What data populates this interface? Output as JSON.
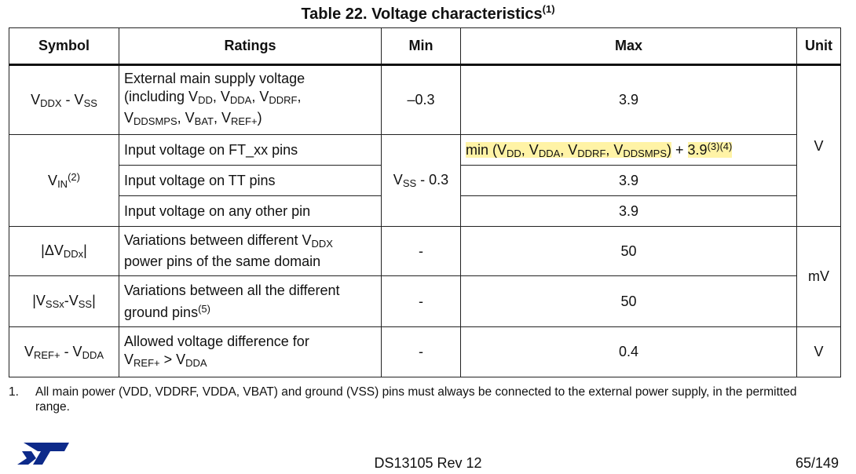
{
  "title": {
    "text": "Table 22. Voltage characteristics",
    "note": "(1)"
  },
  "headers": {
    "symbol": "Symbol",
    "ratings": "Ratings",
    "min": "Min",
    "max": "Max",
    "unit": "Unit"
  },
  "rows": {
    "vddx_vss": {
      "symbol": {
        "a": "V",
        "a_sub": "DDX",
        "b": " - V",
        "b_sub": "SS"
      },
      "rating": {
        "l1": "External main supply voltage",
        "l2": "(including V",
        "s1": "DD",
        "c1": ", V",
        "s2": "DDA",
        "c2": ", V",
        "s3": "DDRF",
        "c3": ",",
        "l3": "V",
        "s4": "DDSMPS",
        "c4": ", V",
        "s5": "BAT",
        "c5": ", V",
        "s6": "REF+",
        "c6": ")"
      },
      "min": "–0.3",
      "max": "3.9"
    },
    "vin": {
      "symbol": {
        "a": "V",
        "a_sub": "IN",
        "sup": "(2)"
      },
      "min": {
        "a": "V",
        "sub": "SS",
        "b": " - 0.3"
      },
      "unit": "V",
      "ft": {
        "rating": "Input voltage on FT_xx pins",
        "max": {
          "p1": "min (V",
          "s1": "DD",
          "p2": ", V",
          "s2": "DDA",
          "p3": ", V",
          "s3": "DDRF",
          "p4": ", V",
          "s4": "DDSMPS",
          "p5": ")",
          "plus": " + ",
          "val": "3.9",
          "sup": "(3)(4)"
        }
      },
      "tt": {
        "rating": "Input voltage on TT pins",
        "max": "3.9"
      },
      "other": {
        "rating": "Input voltage on any other pin",
        "max": "3.9"
      }
    },
    "delta_vddx": {
      "symbol": {
        "a": "|ΔV",
        "sub": "DDx",
        "b": "|"
      },
      "rating": {
        "l1": "Variations between different V",
        "s1": "DDX",
        "l2": "power pins of the same domain"
      },
      "min": "-",
      "max": "50",
      "unit": "mV"
    },
    "vssx_vss": {
      "symbol": {
        "a": "|V",
        "s1": "SSx",
        "b": "-V",
        "s2": "SS",
        "c": "|"
      },
      "rating": {
        "l1": "Variations between all the different",
        "l2": "ground pins",
        "sup": "(5)"
      },
      "min": "-",
      "max": "50"
    },
    "vref_vdda": {
      "symbol": {
        "a": "V",
        "s1": "REF+",
        "b": " - V",
        "s2": "DDA"
      },
      "rating": {
        "l1": "Allowed voltage difference for",
        "l2": "V",
        "s1": "REF+",
        "l3": " > V",
        "s2": "DDA"
      },
      "min": "-",
      "max": "0.4",
      "unit": "V"
    }
  },
  "footnote": {
    "num": "1.",
    "text": "All main power (VDD, VDDRF, VDDA, VBAT) and ground (VSS) pins must always be connected to the external power supply, in the permitted range."
  },
  "footer": {
    "logo_icon": "st-logo-icon",
    "doc_id": "DS13105 Rev 12",
    "page": "65/149"
  },
  "colors": {
    "highlight": "#fff3a6",
    "logo": "#0d2a8a"
  }
}
